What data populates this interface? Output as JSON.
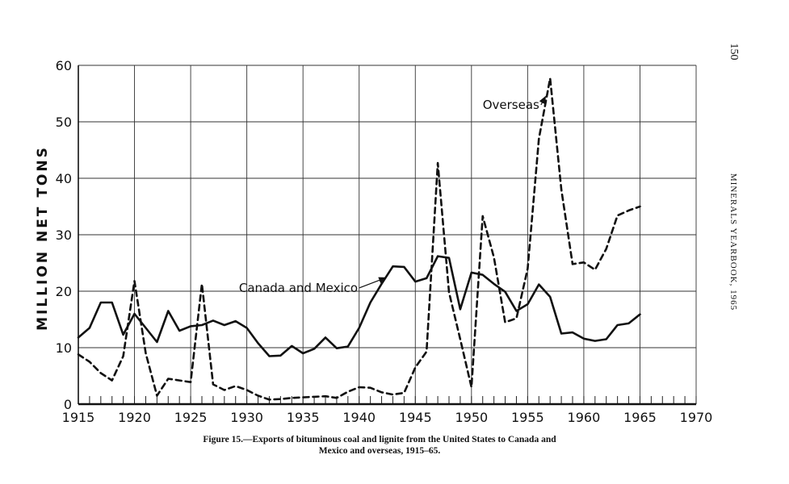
{
  "page": {
    "page_number": "150",
    "running_header": "MINERALS YEARBOOK, 1965",
    "caption_line1": "Figure 15.—Exports of bituminous coal and lignite from the United States to Canada and",
    "caption_line2": "Mexico and overseas, 1915–65."
  },
  "chart_data": {
    "type": "line",
    "title": "",
    "xlabel": "",
    "ylabel": "MILLION NET TONS",
    "xlim": [
      1915,
      1970
    ],
    "ylim": [
      0,
      60
    ],
    "x_ticks": [
      1915,
      1920,
      1925,
      1930,
      1935,
      1940,
      1945,
      1950,
      1955,
      1960,
      1965,
      1970
    ],
    "y_ticks": [
      0,
      10,
      20,
      30,
      40,
      50,
      60
    ],
    "grid": true,
    "series": [
      {
        "name": "Canada and Mexico",
        "style": "solid",
        "color": "#111111",
        "x": [
          1915,
          1916,
          1917,
          1918,
          1919,
          1920,
          1921,
          1922,
          1923,
          1924,
          1925,
          1926,
          1927,
          1928,
          1929,
          1930,
          1931,
          1932,
          1933,
          1934,
          1935,
          1936,
          1937,
          1938,
          1939,
          1940,
          1941,
          1942,
          1943,
          1944,
          1945,
          1946,
          1947,
          1948,
          1949,
          1950,
          1951,
          1952,
          1953,
          1954,
          1955,
          1956,
          1957,
          1958,
          1959,
          1960,
          1961,
          1962,
          1963,
          1964,
          1965
        ],
        "values": [
          11.8,
          13.5,
          18,
          18,
          12.3,
          16,
          13.5,
          11,
          16.5,
          13,
          13.8,
          14,
          14.8,
          14,
          14.7,
          13.5,
          10.8,
          8.5,
          8.6,
          10.3,
          9,
          9.8,
          11.8,
          9.9,
          10.2,
          13.5,
          18,
          21.3,
          24.4,
          24.3,
          21.7,
          22.3,
          26.2,
          25.9,
          16.8,
          23.3,
          22.9,
          21.3,
          19.9,
          16.5,
          17.7,
          21.2,
          19,
          12.5,
          12.7,
          11.6,
          11.2,
          11.5,
          14,
          14.3,
          15.9
        ]
      },
      {
        "name": "Overseas",
        "style": "dashed",
        "color": "#111111",
        "x": [
          1915,
          1916,
          1917,
          1918,
          1919,
          1920,
          1921,
          1922,
          1923,
          1924,
          1925,
          1926,
          1927,
          1928,
          1929,
          1930,
          1931,
          1932,
          1933,
          1934,
          1935,
          1936,
          1937,
          1938,
          1939,
          1940,
          1941,
          1942,
          1943,
          1944,
          1945,
          1946,
          1947,
          1948,
          1949,
          1950,
          1951,
          1952,
          1953,
          1954,
          1955,
          1956,
          1957,
          1958,
          1959,
          1960,
          1961,
          1962,
          1963,
          1964,
          1965
        ],
        "values": [
          8.8,
          7.5,
          5.5,
          4.2,
          8.5,
          21.8,
          9,
          1.5,
          4.5,
          4.2,
          3.9,
          21.3,
          3.5,
          2.5,
          3.2,
          2.5,
          1.5,
          0.8,
          0.9,
          1.1,
          1.2,
          1.3,
          1.4,
          1.1,
          2.2,
          3,
          2.9,
          2.1,
          1.7,
          2,
          6.5,
          9.3,
          42.7,
          19.8,
          11.5,
          3,
          33.3,
          26,
          14.5,
          15.2,
          24,
          47,
          57.7,
          38,
          24.8,
          25.1,
          23.8,
          27.5,
          33.4,
          34.3,
          35
        ]
      }
    ],
    "annotations": [
      {
        "text": "Overseas",
        "series": "Overseas",
        "text_x": 1951,
        "text_y": 53,
        "arrow_to_x": 1956.6,
        "arrow_to_y": 54.5
      },
      {
        "text": "Canada and Mexico",
        "series": "Canada and Mexico",
        "text_x": 1929.3,
        "text_y": 20.6,
        "arrow_to_x": 1942.4,
        "arrow_to_y": 22.4
      }
    ]
  }
}
